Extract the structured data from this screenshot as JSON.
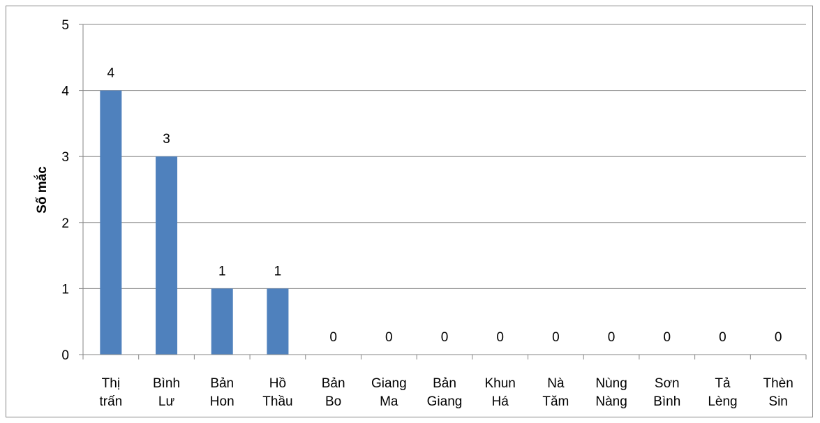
{
  "chart_data": {
    "type": "bar",
    "title": "",
    "xlabel": "",
    "ylabel": "Số mắc",
    "ylim": [
      0,
      5
    ],
    "yticks": [
      0,
      1,
      2,
      3,
      4,
      5
    ],
    "grid": true,
    "bar_color": "#4f81bd",
    "grid_color": "#868686",
    "categories": [
      [
        "Thị",
        "trấn"
      ],
      [
        "Bình",
        "Lư"
      ],
      [
        "Bản",
        "Hon"
      ],
      [
        "Hồ",
        "Thầu"
      ],
      [
        "Bản",
        "Bo"
      ],
      [
        "Giang",
        "Ma"
      ],
      [
        "Bản",
        "Giang"
      ],
      [
        "Khun",
        "Há"
      ],
      [
        "Nà",
        "Tăm"
      ],
      [
        "Nùng",
        "Nàng"
      ],
      [
        "Sơn",
        "Bình"
      ],
      [
        "Tả",
        "Lèng"
      ],
      [
        "Thèn",
        "Sin"
      ]
    ],
    "values": [
      4,
      3,
      1,
      1,
      0,
      0,
      0,
      0,
      0,
      0,
      0,
      0,
      0
    ]
  }
}
